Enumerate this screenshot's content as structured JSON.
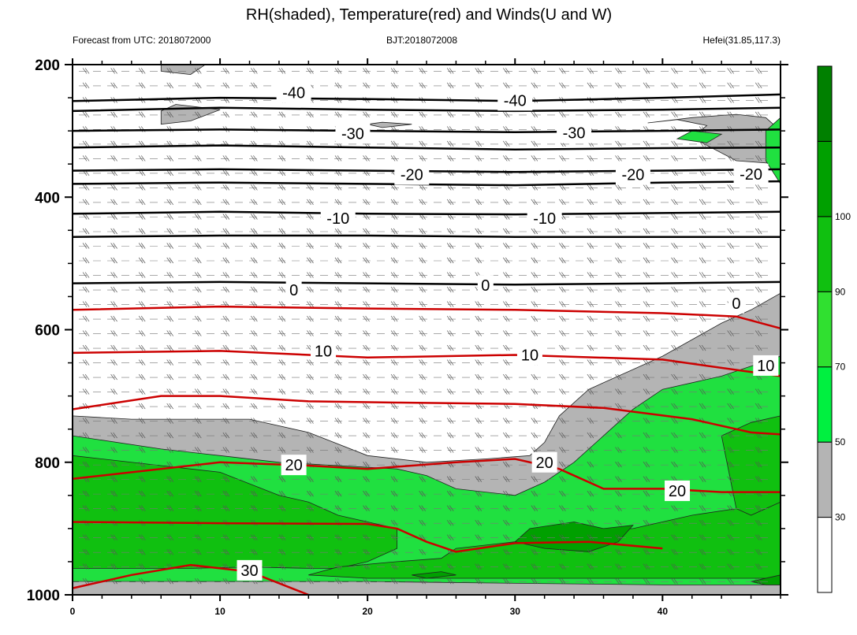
{
  "chart_data": {
    "type": "heatmap",
    "title": "RH(shaded), Temperature(red) and Winds(U and W)",
    "subtitle_left": "Forecast from UTC: 2018072000",
    "subtitle_center": "BJT:2018072008",
    "subtitle_right": "Hefei(31.85,117.3)",
    "xlabel": "",
    "ylabel": "",
    "xlim": [
      0,
      48
    ],
    "ylim": [
      1000,
      200
    ],
    "x_ticks": [
      0,
      10,
      20,
      30,
      40
    ],
    "y_ticks": [
      200,
      400,
      600,
      800,
      1000
    ],
    "grid": false,
    "colorbar": {
      "levels": [
        30,
        50,
        70,
        90,
        100
      ],
      "labels": [
        "30",
        "50",
        "70",
        "90",
        "100"
      ],
      "colors": [
        "#ffffff",
        "#b4b4b4",
        "#00f040",
        "#30e030",
        "#10c010",
        "#00a000",
        "#008000"
      ]
    },
    "rh_regions": [
      {
        "level": 30,
        "color": "#b4b4b4",
        "points": [
          [
            0,
            730
          ],
          [
            4,
            735
          ],
          [
            8,
            735
          ],
          [
            12,
            735
          ],
          [
            16,
            755
          ],
          [
            20,
            790
          ],
          [
            24,
            800
          ],
          [
            28,
            795
          ],
          [
            31,
            790
          ],
          [
            32,
            770
          ],
          [
            33,
            730
          ],
          [
            35,
            690
          ],
          [
            38,
            660
          ],
          [
            40,
            640
          ],
          [
            42,
            615
          ],
          [
            44,
            590
          ],
          [
            46,
            570
          ],
          [
            48,
            545
          ],
          [
            48,
            1000
          ],
          [
            0,
            1000
          ]
        ]
      },
      {
        "level": 30,
        "color": "#b4b4b4",
        "points": [
          [
            6,
            270
          ],
          [
            7,
            260
          ],
          [
            10,
            268
          ],
          [
            8,
            285
          ],
          [
            6,
            290
          ]
        ]
      },
      {
        "level": 30,
        "color": "#b4b4b4",
        "points": [
          [
            20,
            290
          ],
          [
            21,
            287
          ],
          [
            23,
            290
          ],
          [
            21,
            295
          ]
        ]
      },
      {
        "level": 30,
        "color": "#b4b4b4",
        "points": [
          [
            39,
            288
          ],
          [
            41,
            283
          ],
          [
            43,
            292
          ],
          [
            42,
            310
          ],
          [
            45,
            345
          ],
          [
            48,
            350
          ],
          [
            48,
            300
          ],
          [
            47,
            280
          ],
          [
            45,
            275
          ],
          [
            42,
            280
          ]
        ]
      },
      {
        "level": 30,
        "color": "#b4b4b4",
        "points": [
          [
            6,
            198
          ],
          [
            9,
            198
          ],
          [
            8,
            215
          ],
          [
            6,
            210
          ]
        ]
      },
      {
        "level": 50,
        "color": "#20e040",
        "points": [
          [
            0,
            760
          ],
          [
            6,
            780
          ],
          [
            10,
            790
          ],
          [
            14,
            800
          ],
          [
            18,
            805
          ],
          [
            22,
            810
          ],
          [
            24,
            820
          ],
          [
            26,
            840
          ],
          [
            30,
            850
          ],
          [
            32,
            830
          ],
          [
            34,
            800
          ],
          [
            36,
            760
          ],
          [
            38,
            720
          ],
          [
            40,
            690
          ],
          [
            44,
            670
          ],
          [
            46,
            655
          ],
          [
            48,
            640
          ],
          [
            48,
            985
          ],
          [
            40,
            985
          ],
          [
            20,
            980
          ],
          [
            0,
            980
          ]
        ]
      },
      {
        "level": 50,
        "color": "#20e040",
        "points": [
          [
            42,
            300
          ],
          [
            44,
            305
          ],
          [
            43,
            318
          ],
          [
            41,
            312
          ]
        ]
      },
      {
        "level": 50,
        "color": "#20e040",
        "points": [
          [
            47,
            300
          ],
          [
            48,
            280
          ],
          [
            48,
            380
          ],
          [
            47,
            345
          ]
        ]
      },
      {
        "level": 70,
        "color": "#10c010",
        "points": [
          [
            0,
            790
          ],
          [
            6,
            805
          ],
          [
            10,
            815
          ],
          [
            14,
            850
          ],
          [
            16,
            860
          ],
          [
            18,
            880
          ],
          [
            20,
            890
          ],
          [
            22,
            900
          ],
          [
            22,
            930
          ],
          [
            20,
            950
          ],
          [
            18,
            960
          ],
          [
            16,
            960
          ],
          [
            12,
            958
          ],
          [
            8,
            960
          ],
          [
            4,
            960
          ],
          [
            0,
            960
          ]
        ]
      },
      {
        "level": 70,
        "color": "#10c010",
        "points": [
          [
            26,
            930
          ],
          [
            30,
            920
          ],
          [
            34,
            905
          ],
          [
            38,
            900
          ],
          [
            42,
            880
          ],
          [
            45,
            870
          ],
          [
            48,
            860
          ],
          [
            48,
            975
          ],
          [
            30,
            975
          ],
          [
            20,
            975
          ],
          [
            16,
            970
          ],
          [
            18,
            958
          ],
          [
            22,
            950
          ],
          [
            25,
            945
          ]
        ]
      },
      {
        "level": 70,
        "color": "#10c010",
        "points": [
          [
            44,
            760
          ],
          [
            46,
            740
          ],
          [
            48,
            730
          ],
          [
            48,
            860
          ],
          [
            46,
            880
          ],
          [
            45,
            870
          ]
        ]
      },
      {
        "level": 90,
        "color": "#00a000",
        "points": [
          [
            31,
            900
          ],
          [
            34,
            890
          ],
          [
            36,
            900
          ],
          [
            38,
            895
          ],
          [
            37,
            920
          ],
          [
            35,
            935
          ],
          [
            32,
            930
          ],
          [
            30,
            920
          ]
        ]
      },
      {
        "level": 90,
        "color": "#00a000",
        "points": [
          [
            23,
            970
          ],
          [
            25,
            965
          ],
          [
            26,
            970
          ],
          [
            24,
            975
          ]
        ]
      },
      {
        "level": 90,
        "color": "#00a000",
        "points": [
          [
            46,
            980
          ],
          [
            48,
            970
          ],
          [
            48,
            985
          ],
          [
            47,
            985
          ]
        ]
      }
    ],
    "temperature_contours": [
      {
        "value": -40,
        "color": "#000000",
        "points": [
          [
            0,
            255
          ],
          [
            10,
            250
          ],
          [
            20,
            252
          ],
          [
            30,
            255
          ],
          [
            40,
            250
          ],
          [
            48,
            245
          ]
        ]
      },
      {
        "value": -40,
        "color": "#000000",
        "points": [
          [
            0,
            270
          ],
          [
            10,
            265
          ],
          [
            20,
            268
          ],
          [
            30,
            270
          ],
          [
            40,
            268
          ],
          [
            48,
            265
          ]
        ]
      },
      {
        "value": -30,
        "color": "#000000",
        "points": [
          [
            0,
            300
          ],
          [
            10,
            298
          ],
          [
            20,
            300
          ],
          [
            30,
            302
          ],
          [
            40,
            300
          ],
          [
            48,
            298
          ]
        ]
      },
      {
        "value": -30,
        "color": "#000000",
        "points": [
          [
            0,
            325
          ],
          [
            10,
            322
          ],
          [
            20,
            325
          ],
          [
            30,
            328
          ],
          [
            40,
            326
          ],
          [
            48,
            325
          ]
        ]
      },
      {
        "value": -20,
        "color": "#000000",
        "points": [
          [
            0,
            360
          ],
          [
            10,
            358
          ],
          [
            20,
            360
          ],
          [
            30,
            362
          ],
          [
            40,
            360
          ],
          [
            48,
            358
          ]
        ]
      },
      {
        "value": -20,
        "color": "#000000",
        "points": [
          [
            0,
            380
          ],
          [
            10,
            378
          ],
          [
            20,
            380
          ],
          [
            30,
            382
          ],
          [
            40,
            378
          ],
          [
            48,
            376
          ]
        ]
      },
      {
        "value": -10,
        "color": "#000000",
        "points": [
          [
            0,
            425
          ],
          [
            10,
            422
          ],
          [
            20,
            425
          ],
          [
            30,
            426
          ],
          [
            40,
            424
          ],
          [
            48,
            422
          ]
        ]
      },
      {
        "value": -10,
        "color": "#000000",
        "points": [
          [
            0,
            460
          ],
          [
            10,
            458
          ],
          [
            20,
            458
          ],
          [
            30,
            460
          ],
          [
            40,
            460
          ],
          [
            48,
            460
          ]
        ]
      },
      {
        "value": 0,
        "color": "#000000",
        "points": [
          [
            0,
            530
          ],
          [
            10,
            528
          ],
          [
            20,
            530
          ],
          [
            30,
            532
          ],
          [
            40,
            530
          ],
          [
            48,
            528
          ]
        ]
      },
      {
        "value": 0,
        "color": "#cc0000",
        "points": [
          [
            0,
            570
          ],
          [
            10,
            565
          ],
          [
            20,
            568
          ],
          [
            30,
            570
          ],
          [
            40,
            575
          ],
          [
            45,
            580
          ],
          [
            48,
            598
          ]
        ]
      },
      {
        "value": 10,
        "color": "#cc0000",
        "points": [
          [
            0,
            635
          ],
          [
            10,
            632
          ],
          [
            20,
            642
          ],
          [
            30,
            638
          ],
          [
            40,
            645
          ],
          [
            48,
            670
          ]
        ]
      },
      {
        "value": 20,
        "color": "#cc0000",
        "points": [
          [
            0,
            720
          ],
          [
            6,
            700
          ],
          [
            10,
            700
          ],
          [
            16,
            708
          ],
          [
            22,
            710
          ],
          [
            30,
            712
          ],
          [
            36,
            718
          ],
          [
            42,
            735
          ],
          [
            46,
            755
          ],
          [
            48,
            758
          ]
        ]
      },
      {
        "value": 20,
        "color": "#cc0000",
        "points": [
          [
            0,
            825
          ],
          [
            10,
            800
          ],
          [
            16,
            805
          ],
          [
            20,
            810
          ],
          [
            26,
            800
          ],
          [
            30,
            795
          ],
          [
            33,
            810
          ],
          [
            36,
            840
          ],
          [
            40,
            840
          ],
          [
            44,
            845
          ],
          [
            48,
            845
          ]
        ]
      },
      {
        "value": 30,
        "color": "#cc0000",
        "points": [
          [
            0,
            890
          ],
          [
            10,
            892
          ],
          [
            20,
            893
          ],
          [
            22,
            900
          ],
          [
            24,
            920
          ],
          [
            26,
            935
          ],
          [
            30,
            922
          ],
          [
            35,
            920
          ],
          [
            40,
            930
          ]
        ]
      },
      {
        "value": 30,
        "color": "#cc0000",
        "points": [
          [
            0,
            990
          ],
          [
            4,
            970
          ],
          [
            8,
            955
          ],
          [
            12,
            965
          ],
          [
            16,
            1000
          ]
        ]
      }
    ],
    "contour_labels": [
      {
        "text": "-40",
        "x": 15,
        "y": 242
      },
      {
        "text": "-40",
        "x": 30,
        "y": 254
      },
      {
        "text": "-30",
        "x": 19,
        "y": 304
      },
      {
        "text": "-30",
        "x": 34,
        "y": 303
      },
      {
        "text": "-20",
        "x": 23,
        "y": 366
      },
      {
        "text": "-20",
        "x": 38,
        "y": 366
      },
      {
        "text": "-20",
        "x": 46,
        "y": 365
      },
      {
        "text": "-10",
        "x": 18,
        "y": 432
      },
      {
        "text": "-10",
        "x": 32,
        "y": 432
      },
      {
        "text": "0",
        "x": 15,
        "y": 540
      },
      {
        "text": "0",
        "x": 28,
        "y": 533
      },
      {
        "text": "0",
        "x": 45,
        "y": 560
      },
      {
        "text": "10",
        "x": 17,
        "y": 632
      },
      {
        "text": "10",
        "x": 31,
        "y": 638
      },
      {
        "text": "10",
        "x": 47,
        "y": 654
      },
      {
        "text": "20",
        "x": 15,
        "y": 804
      },
      {
        "text": "20",
        "x": 32,
        "y": 800
      },
      {
        "text": "20",
        "x": 41,
        "y": 843
      },
      {
        "text": "30",
        "x": 12,
        "y": 963
      }
    ]
  }
}
